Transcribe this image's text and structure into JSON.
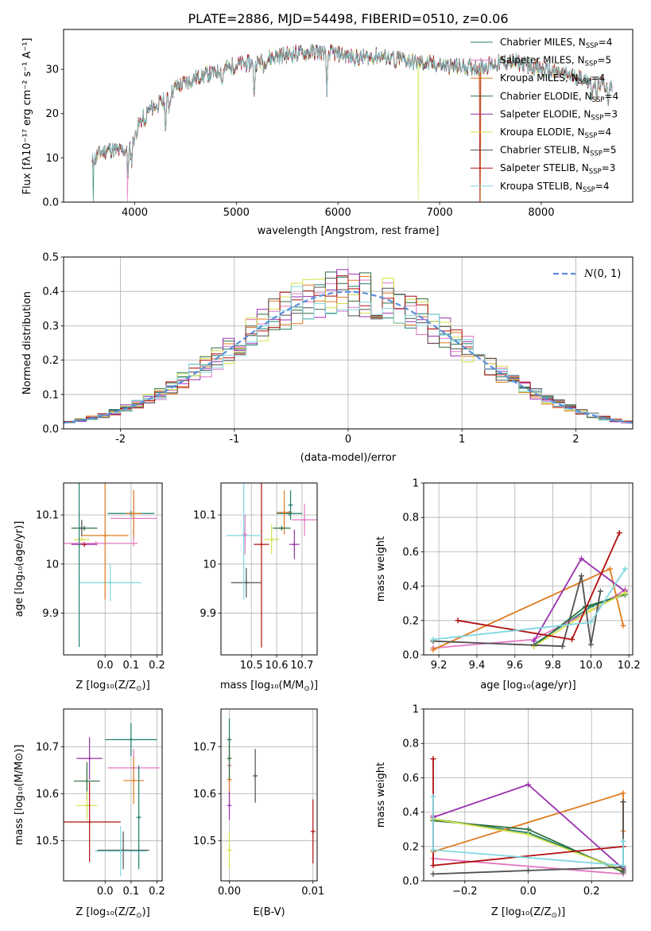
{
  "figure_title": "PLATE=2886, MJD=54498, FIBERID=0510, z=0.06",
  "model_colors": [
    "#1f7f6f",
    "#e377c2",
    "#e07b20",
    "#2f6f3f",
    "#9b30b0",
    "#d4e04a",
    "#505050",
    "#b01010",
    "#7fd6e0"
  ],
  "normal_curve_color": "#5b8fdc",
  "chart_data": [
    {
      "id": "spectrum",
      "type": "line",
      "title": "PLATE=2886, MJD=54498, FIBERID=0510, z=0.06",
      "xlabel": "wavelength [Angstrom, rest frame]",
      "ylabel": "Flux [fλ10⁻¹⁷ erg cm⁻² s⁻¹ A⁻¹]",
      "xlim": [
        3300,
        8900
      ],
      "ylim": [
        0,
        39
      ],
      "xticks": [
        4000,
        5000,
        6000,
        7000,
        8000
      ],
      "yticks": [
        0,
        10,
        20,
        30
      ],
      "legend_position": "upper right",
      "series": [
        {
          "name": "Chabrier MILES, N_SSP=4",
          "label_main": "Chabrier MILES, N",
          "label_sub": "SSP",
          "label_tail": "=4"
        },
        {
          "name": "Salpeter MILES, N_SSP=5",
          "label_main": "Salpeter MILES, N",
          "label_sub": "SSP",
          "label_tail": "=5"
        },
        {
          "name": "Kroupa MILES, N_SSP=4",
          "label_main": "Kroupa MILES, N",
          "label_sub": "SSP",
          "label_tail": "=4"
        },
        {
          "name": "Chabrier ELODIE, N_SSP=4",
          "label_main": "Chabrier ELODIE, N",
          "label_sub": "SSP",
          "label_tail": "=4"
        },
        {
          "name": "Salpeter ELODIE, N_SSP=3",
          "label_main": "Salpeter ELODIE, N",
          "label_sub": "SSP",
          "label_tail": "=3"
        },
        {
          "name": "Kroupa ELODIE, N_SSP=4",
          "label_main": "Kroupa ELODIE, N",
          "label_sub": "SSP",
          "label_tail": "=4"
        },
        {
          "name": "Chabrier STELIB, N_SSP=5",
          "label_main": "Chabrier STELIB, N",
          "label_sub": "SSP",
          "label_tail": "=5"
        },
        {
          "name": "Salpeter STELIB, N_SSP=3",
          "label_main": "Salpeter STELIB, N",
          "label_sub": "SSP",
          "label_tail": "=3"
        },
        {
          "name": "Kroupa STELIB, N_SSP=4",
          "label_main": "Kroupa STELIB, N",
          "label_sub": "SSP",
          "label_tail": "=4"
        }
      ],
      "continuum": [
        [
          3580,
          9
        ],
        [
          3650,
          11
        ],
        [
          3750,
          12
        ],
        [
          3850,
          11.5
        ],
        [
          3950,
          12
        ],
        [
          4050,
          18
        ],
        [
          4150,
          21
        ],
        [
          4300,
          23
        ],
        [
          4400,
          26
        ],
        [
          4600,
          28
        ],
        [
          4800,
          29.5
        ],
        [
          5000,
          31
        ],
        [
          5200,
          31.5
        ],
        [
          5400,
          33
        ],
        [
          5600,
          33.5
        ],
        [
          5800,
          34
        ],
        [
          6000,
          33.5
        ],
        [
          6200,
          32.5
        ],
        [
          6400,
          33
        ],
        [
          6600,
          32.5
        ],
        [
          6800,
          31.5
        ],
        [
          7000,
          31
        ],
        [
          7200,
          30.5
        ],
        [
          7400,
          30.5
        ],
        [
          7600,
          31.5
        ],
        [
          7800,
          31.5
        ],
        [
          8000,
          30
        ],
        [
          8200,
          29
        ],
        [
          8400,
          28
        ],
        [
          8600,
          26.5
        ],
        [
          8700,
          26
        ]
      ],
      "absorption_lines": [
        [
          3934,
          5
        ],
        [
          3969,
          4
        ],
        [
          4102,
          3
        ],
        [
          4304,
          6
        ],
        [
          4340,
          3
        ],
        [
          4861,
          3
        ],
        [
          5175,
          7
        ],
        [
          5270,
          2
        ],
        [
          5890,
          9
        ],
        [
          6563,
          3
        ],
        [
          8498,
          3
        ],
        [
          8542,
          4
        ],
        [
          8662,
          4
        ]
      ],
      "dropouts": [
        [
          3590,
          0
        ],
        [
          3930,
          1
        ],
        [
          6790,
          5
        ],
        [
          7400,
          2
        ],
        [
          7395,
          7
        ]
      ]
    },
    {
      "id": "residuals",
      "type": "step",
      "xlabel": "(data-model)/error",
      "ylabel": "Normed distribution",
      "xlim": [
        -2.5,
        2.5
      ],
      "ylim": [
        0,
        0.5
      ],
      "xticks": [
        -2,
        -1,
        0,
        1,
        2
      ],
      "yticks": [
        0.0,
        0.1,
        0.2,
        0.3,
        0.4,
        0.5
      ],
      "grid": true,
      "legend_position": "upper right",
      "bin_width": 0.1,
      "curve_label": "N(0,1)",
      "curve_label_tail": "(0, 1)"
    },
    {
      "id": "age_vs_Z",
      "type": "errorbar",
      "xlabel_main": "Z [log₁₀(Z/Z",
      "xlabel_tail": ")]",
      "ylabel": "age  [log₁₀(age/yr)]",
      "xlim": [
        -0.16,
        0.22
      ],
      "ylim": [
        9.815,
        10.165
      ],
      "xticks": [
        0.0,
        0.1,
        0.2
      ],
      "xticklabels": [
        "0.0",
        "0.1",
        "0.2"
      ],
      "yticks": [
        9.9,
        10.0,
        10.1
      ],
      "grid": true,
      "points": [
        {
          "x": 0.1,
          "y": 10.103,
          "xerr": 0.09,
          "yerr": 0.0
        },
        {
          "x": 0.11,
          "y": 10.093,
          "xerr": 0.09,
          "yerr": 0.057
        },
        {
          "x": 0.11,
          "y": 10.103,
          "xerr": 0.03,
          "yerr": 0.048
        },
        {
          "x": -0.08,
          "y": 10.073,
          "xerr": 0.05,
          "yerr": 0.0
        },
        {
          "x": -0.08,
          "y": 10.04,
          "xerr": 0.05,
          "yerr": 0.0
        },
        {
          "x": -0.09,
          "y": 10.05,
          "xerr": 0.03,
          "yerr": 0.0
        },
        {
          "x": -0.09,
          "y": 10.073,
          "xerr": 0.0,
          "yerr": 0.017
        },
        {
          "x": -0.08,
          "y": 10.04,
          "xerr": 0.0,
          "yerr": 0.0
        },
        {
          "x": 0.02,
          "y": 9.962,
          "xerr": 0.12,
          "yerr": 0.038
        },
        {
          "x": -0.1,
          "y": 10.041,
          "xerr": 0.0,
          "yerr": 0.21
        },
        {
          "x": -0.035,
          "y": 10.042,
          "xerr": 0.16,
          "yerr": 0.0
        },
        {
          "x": 0.0,
          "y": 10.058,
          "xerr": 0.09,
          "yerr": 0.13
        }
      ]
    },
    {
      "id": "age_vs_mass",
      "type": "errorbar",
      "xlabel_main": "mass [log₁₀(M/M",
      "xlabel_tail": ")]",
      "ylabel": "",
      "xlim": [
        10.38,
        10.76
      ],
      "ylim": [
        9.815,
        10.165
      ],
      "xticks": [
        10.5,
        10.6,
        10.7
      ],
      "xticklabels": [
        "10.5",
        "10.6",
        "10.7"
      ],
      "yticks": [
        9.9,
        10.0,
        10.1
      ],
      "grid": true,
      "points": [
        {
          "x": 10.65,
          "y": 10.103,
          "xerr": 0.05,
          "yerr": 0.0
        },
        {
          "x": 10.71,
          "y": 10.09,
          "xerr": 0.05,
          "yerr": 0.033
        },
        {
          "x": 10.63,
          "y": 10.105,
          "xerr": 0.03,
          "yerr": 0.045
        },
        {
          "x": 10.62,
          "y": 10.073,
          "xerr": 0.035,
          "yerr": 0.0
        },
        {
          "x": 10.67,
          "y": 10.04,
          "xerr": 0.02,
          "yerr": 0.03
        },
        {
          "x": 10.58,
          "y": 10.05,
          "xerr": 0.03,
          "yerr": 0.03
        },
        {
          "x": 10.48,
          "y": 9.962,
          "xerr": 0.06,
          "yerr": 0.03
        },
        {
          "x": 10.54,
          "y": 10.04,
          "xerr": 0.03,
          "yerr": 0.21
        },
        {
          "x": 10.47,
          "y": 10.058,
          "xerr": 0.07,
          "yerr": 0.13
        },
        {
          "x": 10.655,
          "y": 10.12,
          "xerr": 0.0,
          "yerr": 0.03
        },
        {
          "x": 10.475,
          "y": 10.06,
          "xerr": 0.0,
          "yerr": 0.04
        }
      ]
    },
    {
      "id": "weight_vs_age",
      "type": "line",
      "xlabel": "age  [log₁₀(age/yr)]",
      "ylabel": "mass weight",
      "xlim": [
        9.12,
        10.22
      ],
      "ylim": [
        0,
        1
      ],
      "xticks": [
        9.2,
        9.4,
        9.6,
        9.8,
        10.0,
        10.2
      ],
      "xticklabels": [
        "9.2",
        "9.4",
        "9.6",
        "9.8",
        "10.0",
        "10.2"
      ],
      "yticks": [
        0.0,
        0.2,
        0.4,
        0.6,
        0.8,
        1.0
      ],
      "grid": true,
      "series": [
        {
          "x": [
            9.7,
            10.0,
            10.18
          ],
          "y": [
            0.06,
            0.28,
            0.36
          ]
        },
        {
          "x": [
            9.17,
            9.7,
            10.04,
            10.18
          ],
          "y": [
            0.04,
            0.09,
            0.28,
            0.38
          ]
        },
        {
          "x": [
            9.17,
            10.1,
            10.17
          ],
          "y": [
            0.03,
            0.5,
            0.17
          ]
        },
        {
          "x": [
            9.7,
            9.97,
            10.18
          ],
          "y": [
            0.05,
            0.28,
            0.35
          ]
        },
        {
          "x": [
            9.7,
            9.95,
            10.18
          ],
          "y": [
            0.08,
            0.56,
            0.37
          ]
        },
        {
          "x": [
            9.7,
            10.0,
            10.18
          ],
          "y": [
            0.05,
            0.26,
            0.36
          ]
        },
        {
          "x": [
            9.17,
            9.85,
            9.95,
            10.0,
            10.05
          ],
          "y": [
            0.08,
            0.05,
            0.46,
            0.06,
            0.37
          ]
        },
        {
          "x": [
            9.3,
            9.9,
            10.15
          ],
          "y": [
            0.2,
            0.09,
            0.71
          ]
        },
        {
          "x": [
            9.17,
            10.0,
            10.18
          ],
          "y": [
            0.09,
            0.19,
            0.5
          ]
        }
      ]
    },
    {
      "id": "mass_vs_Z",
      "type": "errorbar",
      "xlabel_main": "Z [log₁₀(Z/Z",
      "xlabel_tail": ")]",
      "ylabel": "mass [log₁₀(M/M⊙)]",
      "xlim": [
        -0.16,
        0.22
      ],
      "ylim": [
        10.415,
        10.78
      ],
      "xticks": [
        0.0,
        0.1,
        0.2
      ],
      "xticklabels": [
        "0.0",
        "0.1",
        "0.2"
      ],
      "yticks": [
        10.5,
        10.6,
        10.7
      ],
      "grid": true,
      "points": [
        {
          "x": 0.1,
          "y": 10.715,
          "xerr": 0.1,
          "yerr": 0.035
        },
        {
          "x": 0.11,
          "y": 10.655,
          "xerr": 0.1,
          "yerr": 0.04
        },
        {
          "x": 0.11,
          "y": 10.628,
          "xerr": 0.04,
          "yerr": 0.05
        },
        {
          "x": -0.07,
          "y": 10.627,
          "xerr": 0.05,
          "yerr": 0.04
        },
        {
          "x": -0.06,
          "y": 10.675,
          "xerr": 0.05,
          "yerr": 0.045
        },
        {
          "x": -0.07,
          "y": 10.575,
          "xerr": 0.04,
          "yerr": 0.03
        },
        {
          "x": 0.07,
          "y": 10.48,
          "xerr": 0.1,
          "yerr": 0.04
        },
        {
          "x": -0.06,
          "y": 10.54,
          "xerr": 0.12,
          "yerr": 0.085
        },
        {
          "x": 0.06,
          "y": 10.478,
          "xerr": 0.1,
          "yerr": 0.053
        },
        {
          "x": 0.13,
          "y": 10.55,
          "xerr": 0.0,
          "yerr": 0.11
        }
      ]
    },
    {
      "id": "mass_vs_ebv",
      "type": "errorbar",
      "xlabel": "E(B-V)",
      "ylabel": "",
      "xlim": [
        -0.001,
        0.0105
      ],
      "ylim": [
        10.415,
        10.78
      ],
      "xticks": [
        0.0,
        0.01
      ],
      "xticklabels": [
        "0.00",
        "0.01"
      ],
      "yticks": [
        10.5,
        10.6,
        10.7
      ],
      "grid": true,
      "points": [
        {
          "x": 0.0,
          "y": 10.715,
          "xerr": 0.0,
          "yerr": 0.045
        },
        {
          "x": 0.0,
          "y": 10.66,
          "xerr": 0.0,
          "yerr": 0.06
        },
        {
          "x": 0.0,
          "y": 10.63,
          "xerr": 0.0,
          "yerr": 0.05
        },
        {
          "x": 0.0,
          "y": 10.675,
          "xerr": 0.0,
          "yerr": 0.045
        },
        {
          "x": 0.0,
          "y": 10.575,
          "xerr": 0.0,
          "yerr": 0.03
        },
        {
          "x": 0.0,
          "y": 10.48,
          "xerr": 0.0,
          "yerr": 0.04
        },
        {
          "x": 0.0031,
          "y": 10.638,
          "xerr": 0.0,
          "yerr": 0.057
        },
        {
          "x": 0.01,
          "y": 10.52,
          "xerr": 0.0,
          "yerr": 0.068
        }
      ]
    },
    {
      "id": "weight_vs_Z",
      "type": "line",
      "xlabel_main": "Z [log₁₀(Z/Z",
      "xlabel_tail": ")]",
      "ylabel": "mass weight",
      "xlim": [
        -0.33,
        0.33
      ],
      "ylim": [
        0,
        1
      ],
      "xticks": [
        -0.2,
        0.0,
        0.2
      ],
      "xticklabels": [
        "−0.2",
        "0.0",
        "0.2"
      ],
      "yticks": [
        0.0,
        0.2,
        0.4,
        0.6,
        0.8,
        1.0
      ],
      "grid": true,
      "series": [
        {
          "x": [
            -0.3,
            0.0,
            0.3
          ],
          "y": [
            0.36,
            0.28,
            0.06
          ]
        },
        {
          "x": [
            -0.3,
            -0.3,
            0.3
          ],
          "y": [
            0.38,
            0.13,
            0.04
          ]
        },
        {
          "x": [
            -0.3,
            0.3,
            0.3
          ],
          "y": [
            0.17,
            0.51,
            0.29
          ]
        },
        {
          "x": [
            -0.3,
            0.0,
            0.3
          ],
          "y": [
            0.35,
            0.3,
            0.05
          ]
        },
        {
          "x": [
            -0.3,
            0.0,
            0.3
          ],
          "y": [
            0.37,
            0.56,
            0.07
          ]
        },
        {
          "x": [
            -0.3,
            0.0,
            0.3
          ],
          "y": [
            0.36,
            0.27,
            0.06
          ]
        },
        {
          "x": [
            -0.3,
            0.0,
            0.3,
            0.3,
            0.3
          ],
          "y": [
            0.04,
            0.06,
            0.08,
            0.46,
            0.06
          ]
        },
        {
          "x": [
            -0.3,
            -0.3,
            0.3
          ],
          "y": [
            0.71,
            0.09,
            0.2
          ]
        },
        {
          "x": [
            -0.3,
            -0.3,
            0.3,
            0.3
          ],
          "y": [
            0.49,
            0.18,
            0.09,
            0.23
          ]
        }
      ]
    }
  ]
}
